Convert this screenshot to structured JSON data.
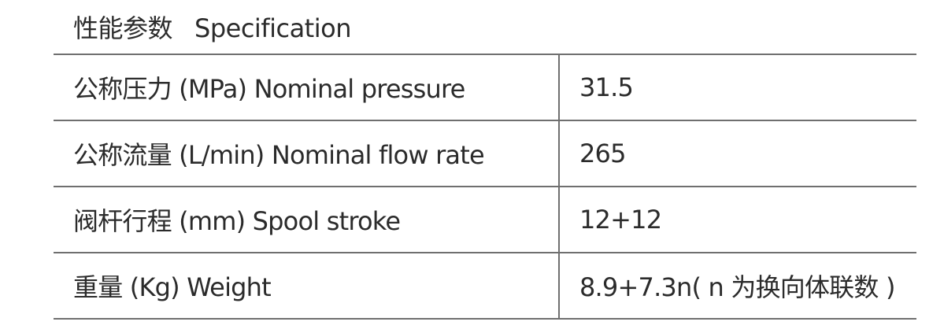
{
  "title": {
    "chinese": "性能参数",
    "english": "Specification"
  },
  "rows": [
    {
      "label": "公称压力 (MPa) Nominal pressure",
      "value": "31.5"
    },
    {
      "label": "公称流量 (L/min) Nominal flow rate",
      "value": "265"
    },
    {
      "label": "阀杆行程 (mm) Spool stroke",
      "value": "12+12"
    },
    {
      "label": "重量 (Kg) Weight",
      "value": "8.9+7.3n( n 为换向体联数 )"
    }
  ]
}
